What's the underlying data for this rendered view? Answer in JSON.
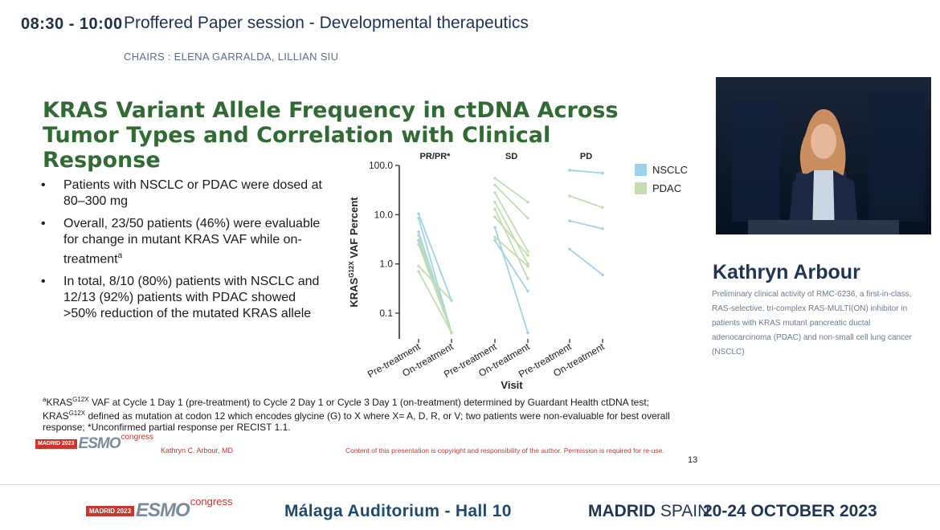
{
  "header": {
    "time": "08:30 - 10:00",
    "session_title": "Proffered Paper session - Developmental therapeutics",
    "chairs": "CHAIRS : ELENA GARRALDA, LILLIAN SIU"
  },
  "slide": {
    "title": "KRAS Variant Allele Frequency in ctDNA Across Tumor Types and Correlation with Clinical Response",
    "bullets": [
      {
        "text": "Patients with NSCLC or PDAC were dosed at 80–300 mg",
        "sup": ""
      },
      {
        "text": "Overall, 23/50 patients (46%) were evaluable for change in mutant KRAS VAF while on-treatment",
        "sup": "a"
      },
      {
        "text": "In total, 8/10 (80%) patients with NSCLC and 12/13 (92%) patients with PDAC showed >50% reduction of the mutated KRAS allele",
        "sup": ""
      }
    ],
    "footnote": {
      "sup_a": "a",
      "line1_start": "KRAS",
      "line1_sup": "G12X",
      "line1_rest": " VAF at Cycle 1 Day 1 (pre-treatment) to Cycle 2 Day 1 or Cycle 3 Day 1 (on-treatment) determined by Guardant Health ctDNA test;",
      "line2_start": "KRAS",
      "line2_sup": "G12X",
      "line2_rest": "  defined as mutation at codon 12 which encodes glycine (G) to X where X= A, D, R, or V; two patients were non-evaluable for best overall response; ",
      "line2_end": "*Unconfirmed partial response per RECIST 1.1."
    },
    "logo": {
      "box": "MADRID 2023",
      "word": "ESMO",
      "sub": "congress"
    },
    "author": "Kathryn C. Arbour, MD",
    "copyright": "Content of this presentation is copyright and responsibility of the author. Permission is required for re-use.",
    "page_number": "13"
  },
  "chart_data": {
    "type": "line",
    "ylabel": "KRAS^G12X VAF Percent",
    "xlabel": "Visit",
    "yscale": "log",
    "ylim": [
      0.03,
      100
    ],
    "yticks": [
      "100.0",
      "10.0",
      "1.0",
      "0.1"
    ],
    "ytick_values": [
      100,
      10,
      1,
      0.1
    ],
    "panels": [
      {
        "title": "PR/PR*",
        "categories": [
          "Pre-treatment",
          "On-treatment"
        ]
      },
      {
        "title": "SD",
        "categories": [
          "Pre-treatment",
          "On-treatment"
        ]
      },
      {
        "title": "PD",
        "categories": [
          "Pre-treatment",
          "On-treatment"
        ]
      }
    ],
    "series_styles": [
      {
        "name": "NSCLC",
        "color": "#9fd3e8"
      },
      {
        "name": "PDAC",
        "color": "#c2ddb0"
      }
    ],
    "lines": [
      {
        "panel": "PR/PR*",
        "type": "NSCLC",
        "values": [
          10.5,
          0.18
        ]
      },
      {
        "panel": "PR/PR*",
        "type": "NSCLC",
        "values": [
          8.5,
          0.04
        ]
      },
      {
        "panel": "PR/PR*",
        "type": "NSCLC",
        "values": [
          4.5,
          0.04
        ]
      },
      {
        "panel": "PR/PR*",
        "type": "NSCLC",
        "values": [
          3.0,
          0.04
        ]
      },
      {
        "panel": "PR/PR*",
        "type": "PDAC",
        "values": [
          3.8,
          0.04
        ]
      },
      {
        "panel": "PR/PR*",
        "type": "PDAC",
        "values": [
          2.5,
          0.04
        ]
      },
      {
        "panel": "PR/PR*",
        "type": "PDAC",
        "values": [
          0.9,
          0.18
        ]
      },
      {
        "panel": "PR/PR*",
        "type": "PDAC",
        "values": [
          0.7,
          0.04
        ]
      },
      {
        "panel": "SD",
        "type": "NSCLC",
        "values": [
          5.5,
          0.04
        ]
      },
      {
        "panel": "SD",
        "type": "NSCLC",
        "values": [
          3.0,
          0.28
        ]
      },
      {
        "panel": "SD",
        "type": "PDAC",
        "values": [
          55,
          18
        ]
      },
      {
        "panel": "SD",
        "type": "PDAC",
        "values": [
          40,
          8.5
        ]
      },
      {
        "panel": "SD",
        "type": "PDAC",
        "values": [
          28,
          1.8
        ]
      },
      {
        "panel": "SD",
        "type": "PDAC",
        "values": [
          18,
          1.0
        ]
      },
      {
        "panel": "SD",
        "type": "PDAC",
        "values": [
          13,
          0.5
        ]
      },
      {
        "panel": "SD",
        "type": "PDAC",
        "values": [
          9,
          1.5
        ]
      },
      {
        "panel": "SD",
        "type": "PDAC",
        "values": [
          3.5,
          0.9
        ]
      },
      {
        "panel": "PD",
        "type": "NSCLC",
        "values": [
          80,
          70
        ]
      },
      {
        "panel": "PD",
        "type": "PDAC",
        "values": [
          24,
          14
        ]
      },
      {
        "panel": "PD",
        "type": "NSCLC",
        "values": [
          7.5,
          5.2
        ]
      },
      {
        "panel": "PD",
        "type": "NSCLC",
        "values": [
          2.0,
          0.6
        ]
      }
    ]
  },
  "speaker": {
    "name": "Kathryn Arbour",
    "description": "Preliminary clinical activity of RMC-6236, a first-in-class, RAS-selective, tri-complex RAS-MULTI(ON) inhibitor in patients with KRAS mutant pancreatic ductal adenocarcinoma (PDAC) and non-small cell lung cancer (NSCLC)"
  },
  "footer": {
    "logo": {
      "box": "MADRID 2023",
      "word": "ESMO",
      "sub": "congress"
    },
    "venue": "Málaga Auditorium - Hall 10",
    "city_bold": "MADRID",
    "city_light": "SPAIN",
    "dates": "20-24 OCTOBER 2023"
  }
}
